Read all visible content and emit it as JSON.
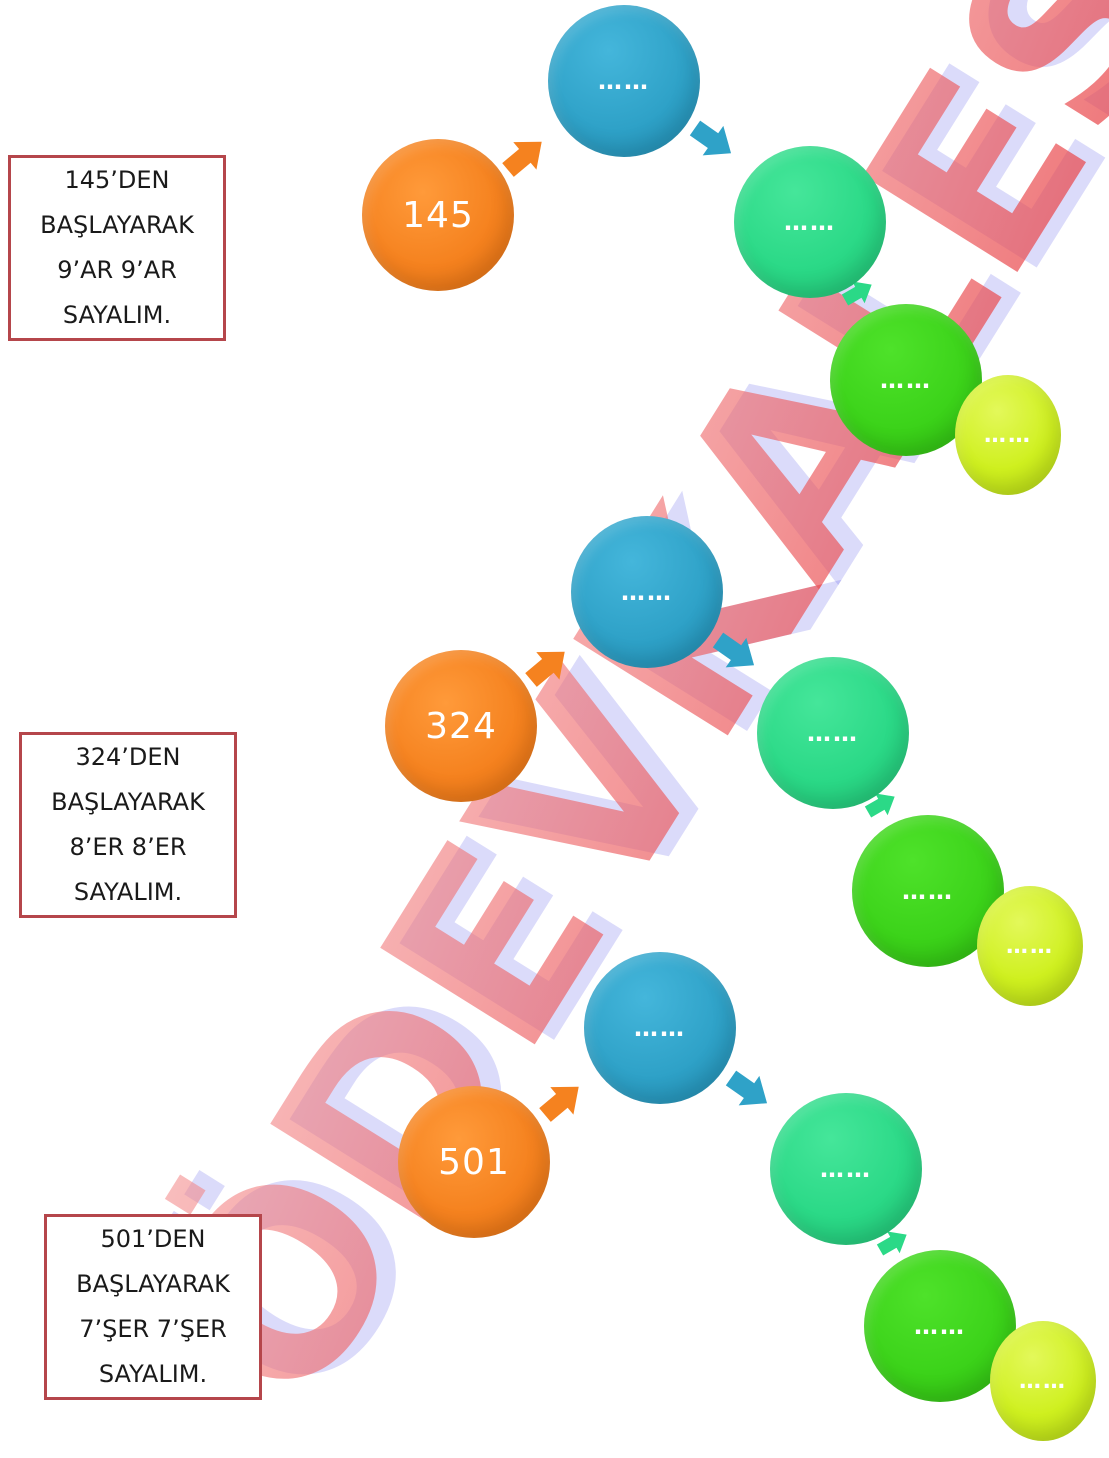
{
  "colors": {
    "start": "#f5821f",
    "step_blue": "#2fa2c8",
    "step_teal": "#2bd987",
    "step_green": "#3cd31a",
    "step_lime": "#cff01f",
    "box_border": "#b5464b",
    "watermark_red": "#e6373c",
    "watermark_blue": "#5a5ae6"
  },
  "watermark": {
    "text": "ÖDEVKALESİ"
  },
  "tasks": [
    {
      "lines": [
        "145’DEN",
        "BAŞLAYARAK",
        "9’AR 9’AR",
        "SAYALIM."
      ],
      "start": "145",
      "steps": [
        "……",
        "……",
        "……",
        "……"
      ]
    },
    {
      "lines": [
        "324’DEN",
        "BAŞLAYARAK",
        "8’ER 8’ER",
        "SAYALIM."
      ],
      "start": "324",
      "steps": [
        "……",
        "……",
        "……",
        "……"
      ]
    },
    {
      "lines": [
        "501’DEN",
        "BAŞLAYARAK",
        "7’ŞER 7’ŞER",
        "SAYALIM."
      ],
      "start": "501",
      "steps": [
        "……",
        "……",
        "……",
        "……"
      ]
    }
  ]
}
